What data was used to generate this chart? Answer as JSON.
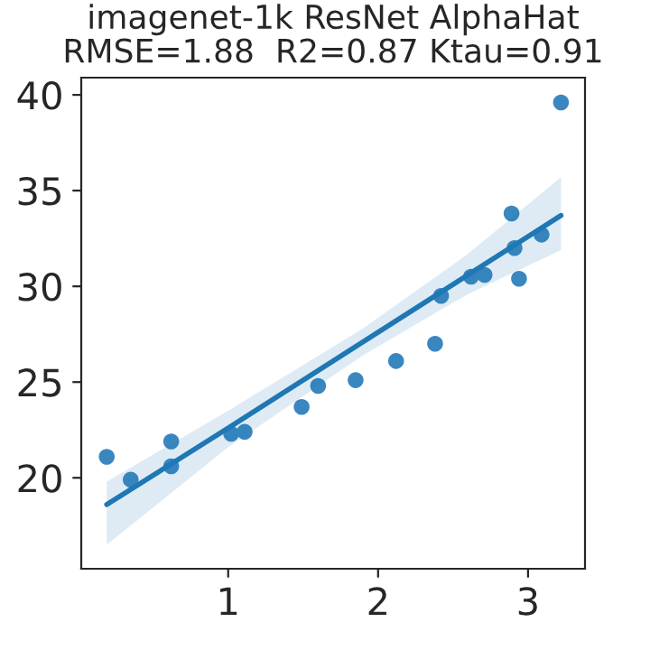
{
  "chart_data": {
    "type": "scatter",
    "title": "imagenet-1k ResNet AlphaHat\nRMSE=1.88  R2=0.87 Ktau=0.91",
    "xlim": [
      0.02,
      3.38
    ],
    "ylim": [
      15.25,
      40.9
    ],
    "xticks": [
      1,
      2,
      3
    ],
    "yticks": [
      20,
      25,
      30,
      35,
      40
    ],
    "grid": false,
    "legend": false,
    "series": [
      {
        "marker": "circle",
        "color": "#3a87c0",
        "x": [
          0.19,
          0.35,
          0.62,
          0.62,
          1.02,
          1.11,
          1.49,
          1.6,
          1.85,
          2.12,
          2.38,
          2.42,
          2.62,
          2.71,
          2.89,
          2.91,
          2.94,
          3.09,
          3.22
        ],
        "values": [
          21.1,
          19.9,
          21.9,
          20.6,
          22.3,
          22.4,
          23.7,
          24.8,
          25.1,
          26.1,
          27.0,
          29.5,
          30.5,
          30.6,
          33.8,
          32.0,
          30.4,
          32.7,
          39.6
        ]
      },
      {
        "type": "line",
        "marker": "none",
        "color": "#1f77b4",
        "x": [
          0.19,
          1.0,
          1.9,
          2.6,
          3.22
        ],
        "values": [
          18.6,
          22.6,
          27.1,
          30.6,
          33.7
        ],
        "lower": [
          16.5,
          21.6,
          26.4,
          29.6,
          31.9
        ],
        "upper": [
          19.8,
          23.5,
          27.8,
          31.7,
          35.7
        ]
      }
    ]
  }
}
